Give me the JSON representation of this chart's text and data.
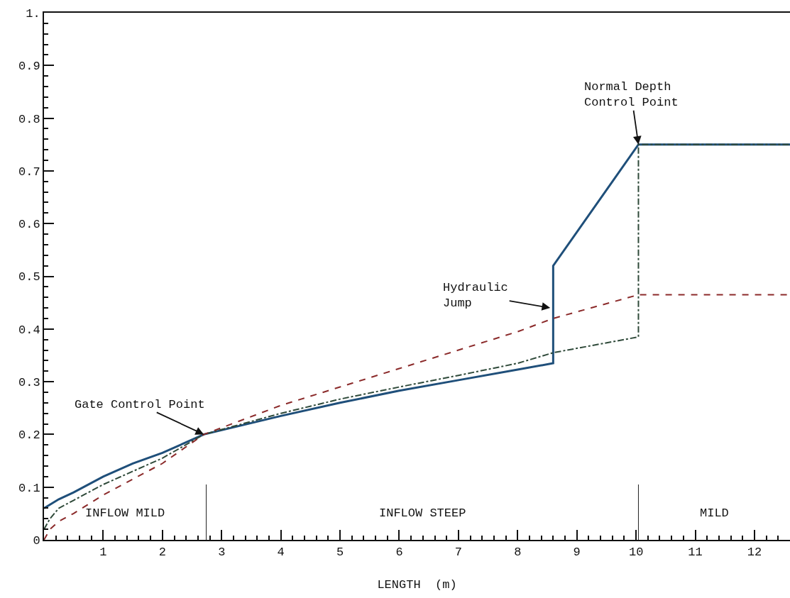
{
  "chart_data": {
    "type": "line",
    "xlabel": "LENGTH  (m)",
    "xlim": [
      0,
      12.6
    ],
    "xticks": [
      1,
      2,
      3,
      4,
      5,
      6,
      7,
      8,
      9,
      10,
      11,
      12
    ],
    "ylim": [
      0,
      1
    ],
    "yticks": [
      0,
      0.1,
      0.2,
      0.3,
      0.4,
      0.5,
      0.6,
      0.7,
      0.8,
      0.9,
      {
        "value": 1,
        "label": "1."
      }
    ],
    "grid": false,
    "marker": "none",
    "series": [
      {
        "color": "#1f4f7a",
        "line_style": "solid",
        "x": [
          0,
          0.25,
          0.5,
          1,
          1.5,
          2,
          2.7,
          4,
          5,
          6,
          7,
          8,
          8.6,
          8.6,
          10.04,
          12.6
        ],
        "values": [
          0.06,
          0.077,
          0.09,
          0.12,
          0.145,
          0.165,
          0.2,
          0.235,
          0.26,
          0.283,
          0.303,
          0.323,
          0.335,
          0.52,
          0.75,
          0.75
        ]
      },
      {
        "color": "#2f4a3a",
        "line_style": "dashdot",
        "x": [
          0,
          0.1,
          0.25,
          0.5,
          1,
          1.5,
          2,
          2.7,
          4,
          5,
          6,
          7,
          8,
          8.6,
          10.04,
          10.04,
          12.6
        ],
        "values": [
          0.02,
          0.04,
          0.06,
          0.075,
          0.105,
          0.13,
          0.155,
          0.2,
          0.24,
          0.267,
          0.29,
          0.312,
          0.335,
          0.355,
          0.385,
          0.75,
          0.75
        ]
      },
      {
        "color": "#8b2a2a",
        "line_style": "dashed",
        "x": [
          0,
          0.1,
          0.25,
          0.5,
          1,
          1.5,
          2,
          2.7,
          4,
          5,
          6,
          7,
          8,
          8.6,
          10.04,
          12.6
        ],
        "values": [
          0,
          0.02,
          0.035,
          0.05,
          0.085,
          0.115,
          0.145,
          0.2,
          0.255,
          0.29,
          0.325,
          0.36,
          0.395,
          0.42,
          0.465,
          0.465
        ]
      }
    ],
    "ref_lines": [
      {
        "axis": "x",
        "value": 2.74
      },
      {
        "axis": "x",
        "value": 10.04
      }
    ],
    "annotations": [
      "INFLOW MILD",
      "INFLOW STEEP",
      "MILD",
      {
        "text": "Gate Control Point",
        "x": 2.7,
        "y": 0.2
      },
      {
        "text": "Hydraulic Jump",
        "x": 8.55,
        "y": 0.44
      },
      {
        "text": "Normal Depth Control Point",
        "x": 10.04,
        "y": 0.75
      }
    ]
  }
}
